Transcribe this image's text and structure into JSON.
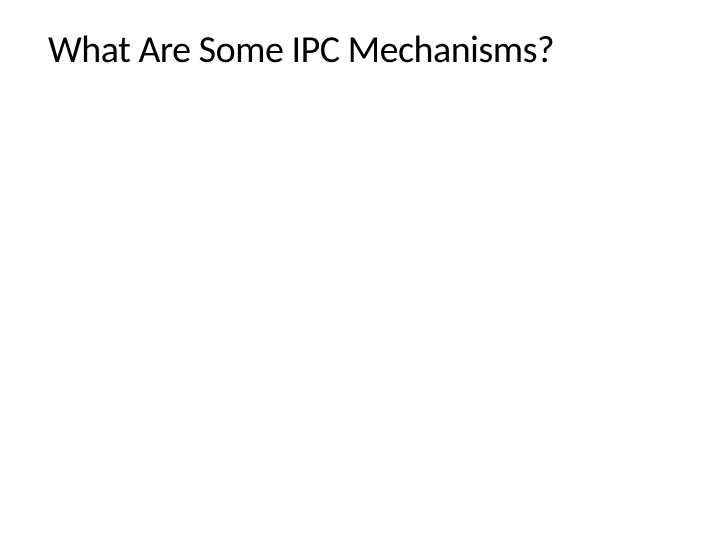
{
  "slide": {
    "title": "What Are Some IPC Mechanisms?",
    "title_fontsize": 38,
    "title_color": "#000000",
    "background_color": "#ffffff",
    "font_family": "Calibri"
  }
}
